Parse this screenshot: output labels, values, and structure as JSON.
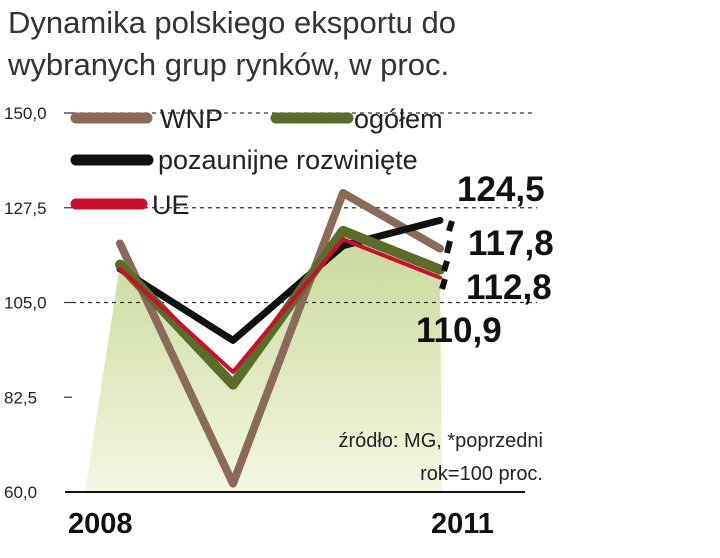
{
  "title_lines": [
    "Dynamika polskiego eksportu do",
    "wybranych grup rynków, w proc."
  ],
  "note_lines": [
    "źródło: MG, *poprzedni",
    "rok=100 proc."
  ],
  "colors": {
    "WNP": "#8a6a58",
    "ogolem": "#5a6b2a",
    "pozaunijne": "#111111",
    "UE": "#c8102e",
    "area_top": "#c8d89a",
    "area_bottom": "#f4f7e2"
  },
  "chart_data": {
    "type": "line",
    "title": "Dynamika polskiego eksportu do wybranych grup rynków, w proc.",
    "x": [
      "2008",
      "2009",
      "2010",
      "2011"
    ],
    "x_tick_labels": [
      "2008",
      "",
      "",
      "2011"
    ],
    "ylim": [
      60,
      150
    ],
    "y_ticks": [
      "60,0",
      "82,5",
      "105,0",
      "127,5",
      "150,0"
    ],
    "grid": "dashed reference lines at 105,0, 127,5 and 150,0",
    "legend": "top-left",
    "series": [
      {
        "name": "WNP",
        "values": [
          119,
          62,
          131,
          117.8
        ]
      },
      {
        "name": "ogółem",
        "values": [
          114,
          85.5,
          122,
          112.8
        ]
      },
      {
        "name": "pozaunijne rozwinięte",
        "values": [
          113,
          96,
          118.5,
          124.5
        ]
      },
      {
        "name": "UE",
        "values": [
          113,
          88.5,
          120,
          110.9
        ]
      }
    ],
    "end_labels": [
      "124,5",
      "117,8",
      "112,8",
      "110,9"
    ],
    "area_series": "ogółem"
  }
}
